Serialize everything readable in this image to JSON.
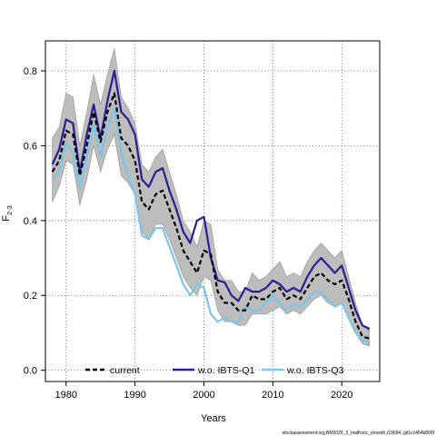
{
  "chart_data": {
    "type": "line",
    "title": "",
    "xlabel": "Years",
    "ylabel_main": "F",
    "ylabel_sub": "2-3",
    "xlim": [
      1977,
      2025.5
    ],
    "ylim": [
      -0.03,
      0.88
    ],
    "xticks": [
      1980,
      1990,
      2000,
      2010,
      2020
    ],
    "yticks": [
      0.0,
      0.2,
      0.4,
      0.6,
      0.8
    ],
    "grid": "dotted",
    "x": [
      1978,
      1979,
      1980,
      1981,
      1982,
      1983,
      1984,
      1985,
      1986,
      1987,
      1988,
      1989,
      1990,
      1991,
      1992,
      1993,
      1994,
      1995,
      1996,
      1997,
      1998,
      1999,
      2000,
      2001,
      2002,
      2003,
      2004,
      2005,
      2006,
      2007,
      2008,
      2009,
      2010,
      2011,
      2012,
      2013,
      2014,
      2015,
      2016,
      2017,
      2018,
      2019,
      2020,
      2021,
      2022,
      2023,
      2024
    ],
    "series": [
      {
        "name": "current",
        "color": "#000000",
        "style": "dashed",
        "values": [
          0.53,
          0.56,
          0.64,
          0.63,
          0.52,
          0.6,
          0.69,
          0.61,
          0.69,
          0.74,
          0.62,
          0.6,
          0.56,
          0.45,
          0.43,
          0.47,
          0.48,
          0.43,
          0.38,
          0.32,
          0.29,
          0.26,
          0.32,
          0.31,
          0.21,
          0.18,
          0.18,
          0.16,
          0.16,
          0.2,
          0.19,
          0.19,
          0.21,
          0.22,
          0.19,
          0.2,
          0.19,
          0.22,
          0.25,
          0.26,
          0.24,
          0.23,
          0.24,
          0.19,
          0.13,
          0.09,
          0.085
        ]
      },
      {
        "name": "w.o. IBTS-Q1",
        "color": "#2b1f8f",
        "style": "solid",
        "values": [
          0.55,
          0.59,
          0.67,
          0.66,
          0.53,
          0.63,
          0.71,
          0.62,
          0.72,
          0.8,
          0.69,
          0.67,
          0.63,
          0.51,
          0.49,
          0.53,
          0.54,
          0.48,
          0.43,
          0.37,
          0.34,
          0.4,
          0.41,
          0.3,
          0.24,
          0.235,
          0.2,
          0.185,
          0.22,
          0.21,
          0.21,
          0.22,
          0.24,
          0.23,
          0.21,
          0.22,
          0.21,
          0.25,
          0.28,
          0.3,
          0.28,
          0.26,
          0.28,
          0.22,
          0.16,
          0.12,
          0.11
        ]
      },
      {
        "name": "w.o. IBTS-Q3",
        "color": "#7cc4e8",
        "style": "solid",
        "values": [
          0.51,
          0.53,
          0.61,
          0.58,
          0.49,
          0.57,
          0.66,
          0.57,
          0.65,
          0.7,
          0.58,
          0.52,
          0.47,
          0.36,
          0.35,
          0.38,
          0.38,
          0.33,
          0.28,
          0.23,
          0.2,
          0.23,
          0.22,
          0.15,
          0.13,
          0.14,
          0.13,
          0.13,
          0.17,
          0.16,
          0.16,
          0.18,
          0.2,
          0.18,
          0.16,
          0.18,
          0.17,
          0.19,
          0.21,
          0.21,
          0.19,
          0.17,
          0.18,
          0.14,
          0.1,
          0.08,
          0.075
        ]
      }
    ],
    "band": {
      "color": "#bdbdbd",
      "lower": [
        0.45,
        0.49,
        0.56,
        0.55,
        0.44,
        0.51,
        0.6,
        0.53,
        0.59,
        0.63,
        0.52,
        0.5,
        0.47,
        0.37,
        0.35,
        0.39,
        0.39,
        0.35,
        0.3,
        0.25,
        0.22,
        0.2,
        0.25,
        0.24,
        0.16,
        0.13,
        0.13,
        0.12,
        0.12,
        0.15,
        0.15,
        0.15,
        0.16,
        0.17,
        0.15,
        0.16,
        0.15,
        0.17,
        0.19,
        0.2,
        0.18,
        0.17,
        0.18,
        0.14,
        0.1,
        0.07,
        0.065
      ],
      "upper": [
        0.62,
        0.65,
        0.74,
        0.73,
        0.6,
        0.69,
        0.79,
        0.71,
        0.79,
        0.86,
        0.73,
        0.7,
        0.66,
        0.55,
        0.53,
        0.57,
        0.59,
        0.53,
        0.47,
        0.4,
        0.37,
        0.33,
        0.4,
        0.39,
        0.27,
        0.24,
        0.24,
        0.21,
        0.21,
        0.26,
        0.24,
        0.25,
        0.27,
        0.29,
        0.25,
        0.26,
        0.25,
        0.29,
        0.32,
        0.34,
        0.32,
        0.3,
        0.32,
        0.25,
        0.18,
        0.12,
        0.115
      ]
    },
    "legend": {
      "placement": "bottom",
      "entries": [
        "current",
        "w.o. IBTS-Q1",
        "w.o. IBTS-Q3"
      ]
    },
    "footer": "stockassessment.org,BM2026_3_malfrunc_smooth,r19694,.git1cc464b806f"
  }
}
